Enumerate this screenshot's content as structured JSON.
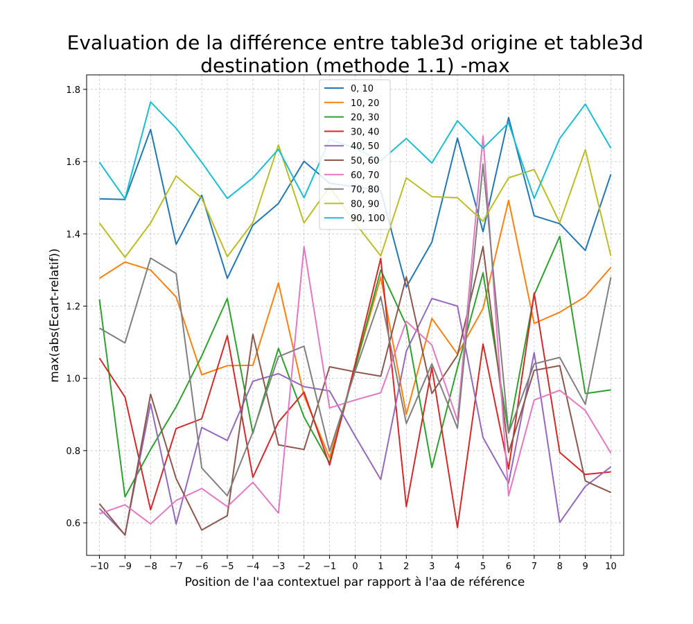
{
  "chart_data": {
    "type": "line",
    "title_line1": "Evaluation de la différence entre table3d origine et table3d",
    "title_line2": "destination (methode 1.1) -max",
    "xlabel": "Position de l'aa contextuel par rapport à l'aa de référence",
    "ylabel": "max(abs(Ecart-relatif))",
    "xlim": [
      -10.5,
      10.5
    ],
    "ylim": [
      0.51,
      1.84
    ],
    "x_ticks": [
      -10,
      -9,
      -8,
      -7,
      -6,
      -5,
      -4,
      -3,
      -2,
      -1,
      0,
      1,
      2,
      3,
      4,
      5,
      6,
      7,
      8,
      9,
      10
    ],
    "x_tick_labels": [
      "−10",
      "−9",
      "−8",
      "−7",
      "−6",
      "−5",
      "−4",
      "−3",
      "−2",
      "−1",
      "0",
      "1",
      "2",
      "3",
      "4",
      "5",
      "6",
      "7",
      "8",
      "9",
      "10"
    ],
    "y_ticks": [
      0.6,
      0.8,
      1.0,
      1.2,
      1.4,
      1.6,
      1.8
    ],
    "y_tick_labels": [
      "0.6",
      "0.8",
      "1.0",
      "1.2",
      "1.4",
      "1.6",
      "1.8"
    ],
    "grid": true,
    "legend_position": "top-center",
    "x": [
      -10,
      -9,
      -8,
      -7,
      -6,
      -5,
      -4,
      -3,
      -2,
      -1,
      0,
      1,
      2,
      3,
      4,
      5,
      6,
      7,
      8,
      9,
      10
    ],
    "series": [
      {
        "name": "0, 10",
        "color": "#1f77b4",
        "values": [
          1.497,
          1.495,
          1.689,
          1.371,
          1.507,
          1.277,
          1.424,
          1.484,
          1.601,
          1.54,
          1.53,
          1.52,
          1.253,
          1.377,
          1.665,
          1.406,
          1.722,
          1.45,
          1.428,
          1.354,
          1.565
        ]
      },
      {
        "name": "10, 20",
        "color": "#ff7f0e",
        "values": [
          1.277,
          1.322,
          1.3,
          1.225,
          1.01,
          1.035,
          1.036,
          1.264,
          0.952,
          0.78,
          1.03,
          1.28,
          0.9,
          1.166,
          1.067,
          1.193,
          1.493,
          1.152,
          1.183,
          1.226,
          1.307
        ]
      },
      {
        "name": "20, 30",
        "color": "#2ca02c",
        "values": [
          1.219,
          0.672,
          0.803,
          0.921,
          1.062,
          1.221,
          0.848,
          1.083,
          0.893,
          0.766,
          1.03,
          1.3,
          1.147,
          0.753,
          1.03,
          1.292,
          0.849,
          1.231,
          1.393,
          0.958,
          0.968
        ]
      },
      {
        "name": "30, 40",
        "color": "#d62728",
        "values": [
          1.056,
          0.948,
          0.636,
          0.861,
          0.888,
          1.118,
          0.726,
          0.879,
          0.962,
          0.76,
          1.04,
          1.332,
          0.645,
          1.03,
          0.587,
          1.095,
          0.749,
          1.236,
          0.795,
          0.734,
          0.741
        ]
      },
      {
        "name": "40, 50",
        "color": "#9467bd",
        "values": [
          0.64,
          0.567,
          0.93,
          0.597,
          0.864,
          0.828,
          0.992,
          1.013,
          0.977,
          0.965,
          0.84,
          0.72,
          1.075,
          1.221,
          1.2,
          0.836,
          0.71,
          1.071,
          0.601,
          0.701,
          0.755
        ]
      },
      {
        "name": "50, 60",
        "color": "#8c564b",
        "values": [
          0.653,
          0.566,
          0.956,
          0.722,
          0.58,
          0.62,
          1.122,
          0.816,
          0.803,
          1.032,
          1.018,
          1.006,
          1.281,
          0.958,
          1.064,
          1.365,
          0.795,
          1.022,
          1.035,
          0.716,
          0.684
        ]
      },
      {
        "name": "60, 70",
        "color": "#e377c2",
        "values": [
          0.625,
          0.65,
          0.597,
          0.662,
          0.695,
          0.645,
          0.712,
          0.627,
          1.365,
          0.918,
          0.94,
          0.96,
          1.158,
          1.092,
          0.883,
          1.671,
          0.675,
          0.94,
          0.967,
          0.911,
          0.793
        ]
      },
      {
        "name": "70, 80",
        "color": "#7f7f7f",
        "values": [
          1.139,
          1.098,
          1.333,
          1.29,
          0.752,
          0.675,
          0.851,
          1.06,
          1.089,
          0.798,
          1.02,
          1.226,
          0.875,
          1.04,
          0.862,
          1.593,
          0.849,
          1.04,
          1.058,
          0.928,
          1.28
        ]
      },
      {
        "name": "80, 90",
        "color": "#bcbd22",
        "values": [
          1.43,
          1.335,
          1.43,
          1.56,
          1.499,
          1.337,
          1.431,
          1.646,
          1.43,
          1.53,
          1.43,
          1.339,
          1.555,
          1.503,
          1.5,
          1.435,
          1.555,
          1.578,
          1.431,
          1.633,
          1.339
        ]
      },
      {
        "name": "90, 100",
        "color": "#17becf",
        "values": [
          1.598,
          1.497,
          1.765,
          1.692,
          1.598,
          1.498,
          1.555,
          1.634,
          1.5,
          1.661,
          1.637,
          1.602,
          1.664,
          1.596,
          1.713,
          1.637,
          1.707,
          1.498,
          1.664,
          1.759,
          1.637
        ]
      }
    ]
  }
}
